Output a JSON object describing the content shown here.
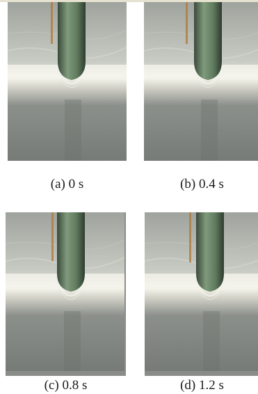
{
  "panels": [
    {
      "caption": "(a) 0 s"
    },
    {
      "caption": "(b) 0.4 s"
    },
    {
      "caption": "(c) 0.8 s"
    },
    {
      "caption": "(d) 1.2 s"
    }
  ],
  "colors": {
    "water_upper": "#b8bcb5",
    "water_lower": "#7f837f",
    "bright_band": "#f4f3e9",
    "probe_body": "#6f8a6c",
    "probe_dark": "#2f3d30",
    "rod_tint": "#b07a3c"
  }
}
